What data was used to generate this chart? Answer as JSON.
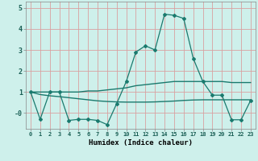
{
  "xlabel": "Humidex (Indice chaleur)",
  "x": [
    0,
    1,
    2,
    3,
    4,
    5,
    6,
    7,
    8,
    9,
    10,
    11,
    12,
    13,
    14,
    15,
    16,
    17,
    18,
    19,
    20,
    21,
    22,
    23
  ],
  "y_main": [
    1.0,
    -0.3,
    1.0,
    1.0,
    -0.35,
    -0.3,
    -0.3,
    -0.35,
    -0.55,
    0.45,
    1.5,
    2.9,
    3.2,
    3.0,
    4.7,
    4.65,
    4.5,
    2.6,
    1.5,
    0.85,
    0.85,
    -0.32,
    -0.32,
    0.6
  ],
  "y_upper": [
    1.0,
    1.0,
    1.0,
    1.0,
    1.0,
    1.0,
    1.05,
    1.05,
    1.1,
    1.15,
    1.2,
    1.3,
    1.35,
    1.4,
    1.45,
    1.5,
    1.5,
    1.5,
    1.5,
    1.5,
    1.5,
    1.45,
    1.45,
    1.45
  ],
  "y_lower": [
    1.0,
    0.88,
    0.82,
    0.78,
    0.73,
    0.68,
    0.63,
    0.58,
    0.55,
    0.53,
    0.52,
    0.52,
    0.52,
    0.53,
    0.55,
    0.57,
    0.6,
    0.62,
    0.63,
    0.63,
    0.63,
    0.63,
    0.63,
    0.63
  ],
  "line_color": "#1a7a6e",
  "bg_color": "#cef0eb",
  "grid_color": "#d9a0a0",
  "xlim": [
    -0.5,
    23.5
  ],
  "ylim": [
    -0.75,
    5.3
  ],
  "yticks": [
    0,
    1,
    2,
    3,
    4,
    5
  ],
  "ytick_labels": [
    "-0",
    "1",
    "2",
    "3",
    "4",
    "5"
  ],
  "xticks": [
    0,
    1,
    2,
    3,
    4,
    5,
    6,
    7,
    8,
    9,
    10,
    11,
    12,
    13,
    14,
    15,
    16,
    17,
    18,
    19,
    20,
    21,
    22,
    23
  ]
}
